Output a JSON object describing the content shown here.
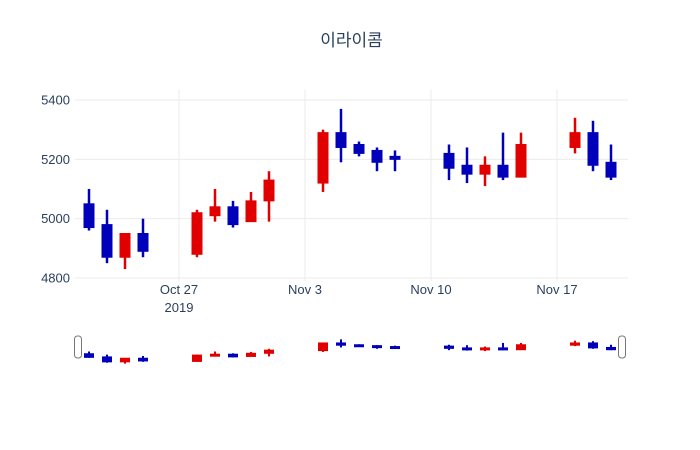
{
  "title": "이라이콤",
  "colors": {
    "increasing": "#e10000",
    "decreasing": "#0000bb",
    "grid": "#ebebeb",
    "text": "#2a3f5f",
    "background": "#ffffff",
    "handle_border": "#777777",
    "handle_fill": "#ffffff"
  },
  "chart_data": {
    "type": "candlestick",
    "title": "이라이콤",
    "xlabel": "",
    "ylabel": "",
    "ylim": [
      4790,
      5435
    ],
    "grid": true,
    "rangeslider": true,
    "y_ticks": [
      5400,
      5200,
      5000,
      4800
    ],
    "x_ticks": [
      {
        "label": "Oct 27",
        "sub": "2019",
        "date": "2019-10-27"
      },
      {
        "label": "Nov 3",
        "sub": "",
        "date": "2019-11-03"
      },
      {
        "label": "Nov 10",
        "sub": "",
        "date": "2019-11-10"
      },
      {
        "label": "Nov 17",
        "sub": "",
        "date": "2019-11-17"
      }
    ],
    "candles": [
      {
        "date": "2019-10-22",
        "open": 5050,
        "high": 5100,
        "low": 4960,
        "close": 4970
      },
      {
        "date": "2019-10-23",
        "open": 4980,
        "high": 5030,
        "low": 4850,
        "close": 4870
      },
      {
        "date": "2019-10-24",
        "open": 4870,
        "high": 4950,
        "low": 4830,
        "close": 4950
      },
      {
        "date": "2019-10-25",
        "open": 4950,
        "high": 5000,
        "low": 4870,
        "close": 4890
      },
      {
        "date": "2019-10-28",
        "open": 4880,
        "high": 5030,
        "low": 4870,
        "close": 5020
      },
      {
        "date": "2019-10-29",
        "open": 5010,
        "high": 5100,
        "low": 4990,
        "close": 5040
      },
      {
        "date": "2019-10-30",
        "open": 5040,
        "high": 5060,
        "low": 4970,
        "close": 4980
      },
      {
        "date": "2019-10-31",
        "open": 4990,
        "high": 5090,
        "low": 4990,
        "close": 5060
      },
      {
        "date": "2019-11-01",
        "open": 5060,
        "high": 5160,
        "low": 4990,
        "close": 5130
      },
      {
        "date": "2019-11-04",
        "open": 5120,
        "high": 5300,
        "low": 5090,
        "close": 5290
      },
      {
        "date": "2019-11-05",
        "open": 5290,
        "high": 5370,
        "low": 5190,
        "close": 5240
      },
      {
        "date": "2019-11-06",
        "open": 5250,
        "high": 5260,
        "low": 5210,
        "close": 5220
      },
      {
        "date": "2019-11-07",
        "open": 5230,
        "high": 5240,
        "low": 5160,
        "close": 5190
      },
      {
        "date": "2019-11-08",
        "open": 5210,
        "high": 5230,
        "low": 5160,
        "close": 5200
      },
      {
        "date": "2019-11-11",
        "open": 5220,
        "high": 5250,
        "low": 5130,
        "close": 5170
      },
      {
        "date": "2019-11-12",
        "open": 5180,
        "high": 5240,
        "low": 5120,
        "close": 5150
      },
      {
        "date": "2019-11-13",
        "open": 5150,
        "high": 5210,
        "low": 5110,
        "close": 5180
      },
      {
        "date": "2019-11-14",
        "open": 5180,
        "high": 5290,
        "low": 5130,
        "close": 5140
      },
      {
        "date": "2019-11-15",
        "open": 5140,
        "high": 5290,
        "low": 5140,
        "close": 5250
      },
      {
        "date": "2019-11-18",
        "open": 5240,
        "high": 5340,
        "low": 5220,
        "close": 5290
      },
      {
        "date": "2019-11-19",
        "open": 5290,
        "high": 5330,
        "low": 5160,
        "close": 5180
      },
      {
        "date": "2019-11-20",
        "open": 5190,
        "high": 5250,
        "low": 5130,
        "close": 5140
      }
    ]
  }
}
